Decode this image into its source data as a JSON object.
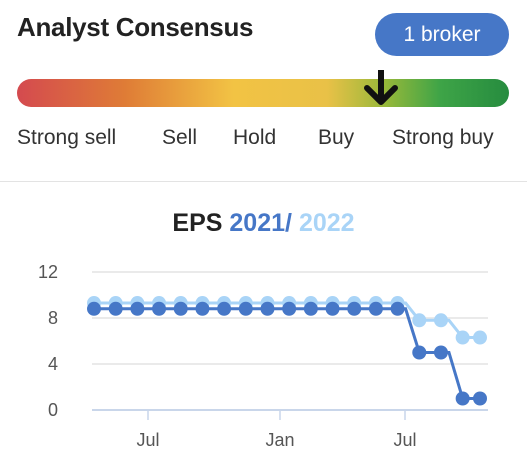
{
  "consensus": {
    "title": "Analyst Consensus",
    "broker_button": "1 broker",
    "scale_labels": [
      "Strong sell",
      "Sell",
      "Hold",
      "Buy",
      "Strong buy"
    ],
    "indicator_icon": "arrow-down-icon",
    "indicator_position": 0.74
  },
  "eps_chart": {
    "title_prefix": "EPS",
    "year_a": "2021",
    "separator": "/",
    "year_b": "2022",
    "colors": {
      "series_a": "#4677c7",
      "series_b": "#a9d4f7"
    }
  },
  "chart_data": {
    "type": "line",
    "yticks": [
      0,
      4,
      8,
      12
    ],
    "xticks": [
      "Jul",
      "Jan",
      "Jul"
    ],
    "ylim": [
      0,
      12
    ],
    "grid": true,
    "series": [
      {
        "name": "2021",
        "values": [
          {
            "x": 0,
            "y": 8.8
          },
          {
            "x": 1,
            "y": 8.8
          },
          {
            "x": 2,
            "y": 8.8
          },
          {
            "x": 3,
            "y": 8.8
          },
          {
            "x": 4,
            "y": 8.8
          },
          {
            "x": 5,
            "y": 8.8
          },
          {
            "x": 6,
            "y": 8.8
          },
          {
            "x": 7,
            "y": 8.8
          },
          {
            "x": 8,
            "y": 8.8
          },
          {
            "x": 9,
            "y": 8.8
          },
          {
            "x": 10,
            "y": 8.8
          },
          {
            "x": 11,
            "y": 8.8
          },
          {
            "x": 12,
            "y": 8.8
          },
          {
            "x": 13,
            "y": 8.8
          },
          {
            "x": 14,
            "y": 8.8
          },
          {
            "x": 15.0,
            "y": 5.0
          },
          {
            "x": 16.0,
            "y": 5.0
          },
          {
            "x": 17.0,
            "y": 1.0
          },
          {
            "x": 17.8,
            "y": 1.0
          }
        ]
      },
      {
        "name": "2022",
        "values": [
          {
            "x": 0,
            "y": 9.3
          },
          {
            "x": 1,
            "y": 9.3
          },
          {
            "x": 2,
            "y": 9.3
          },
          {
            "x": 3,
            "y": 9.3
          },
          {
            "x": 4,
            "y": 9.3
          },
          {
            "x": 5,
            "y": 9.3
          },
          {
            "x": 6,
            "y": 9.3
          },
          {
            "x": 7,
            "y": 9.3
          },
          {
            "x": 8,
            "y": 9.3
          },
          {
            "x": 9,
            "y": 9.3
          },
          {
            "x": 10,
            "y": 9.3
          },
          {
            "x": 11,
            "y": 9.3
          },
          {
            "x": 12,
            "y": 9.3
          },
          {
            "x": 13,
            "y": 9.3
          },
          {
            "x": 14,
            "y": 9.3
          },
          {
            "x": 15.0,
            "y": 7.8
          },
          {
            "x": 16.0,
            "y": 7.8
          },
          {
            "x": 17.0,
            "y": 6.3
          },
          {
            "x": 17.8,
            "y": 6.3
          }
        ]
      }
    ]
  }
}
